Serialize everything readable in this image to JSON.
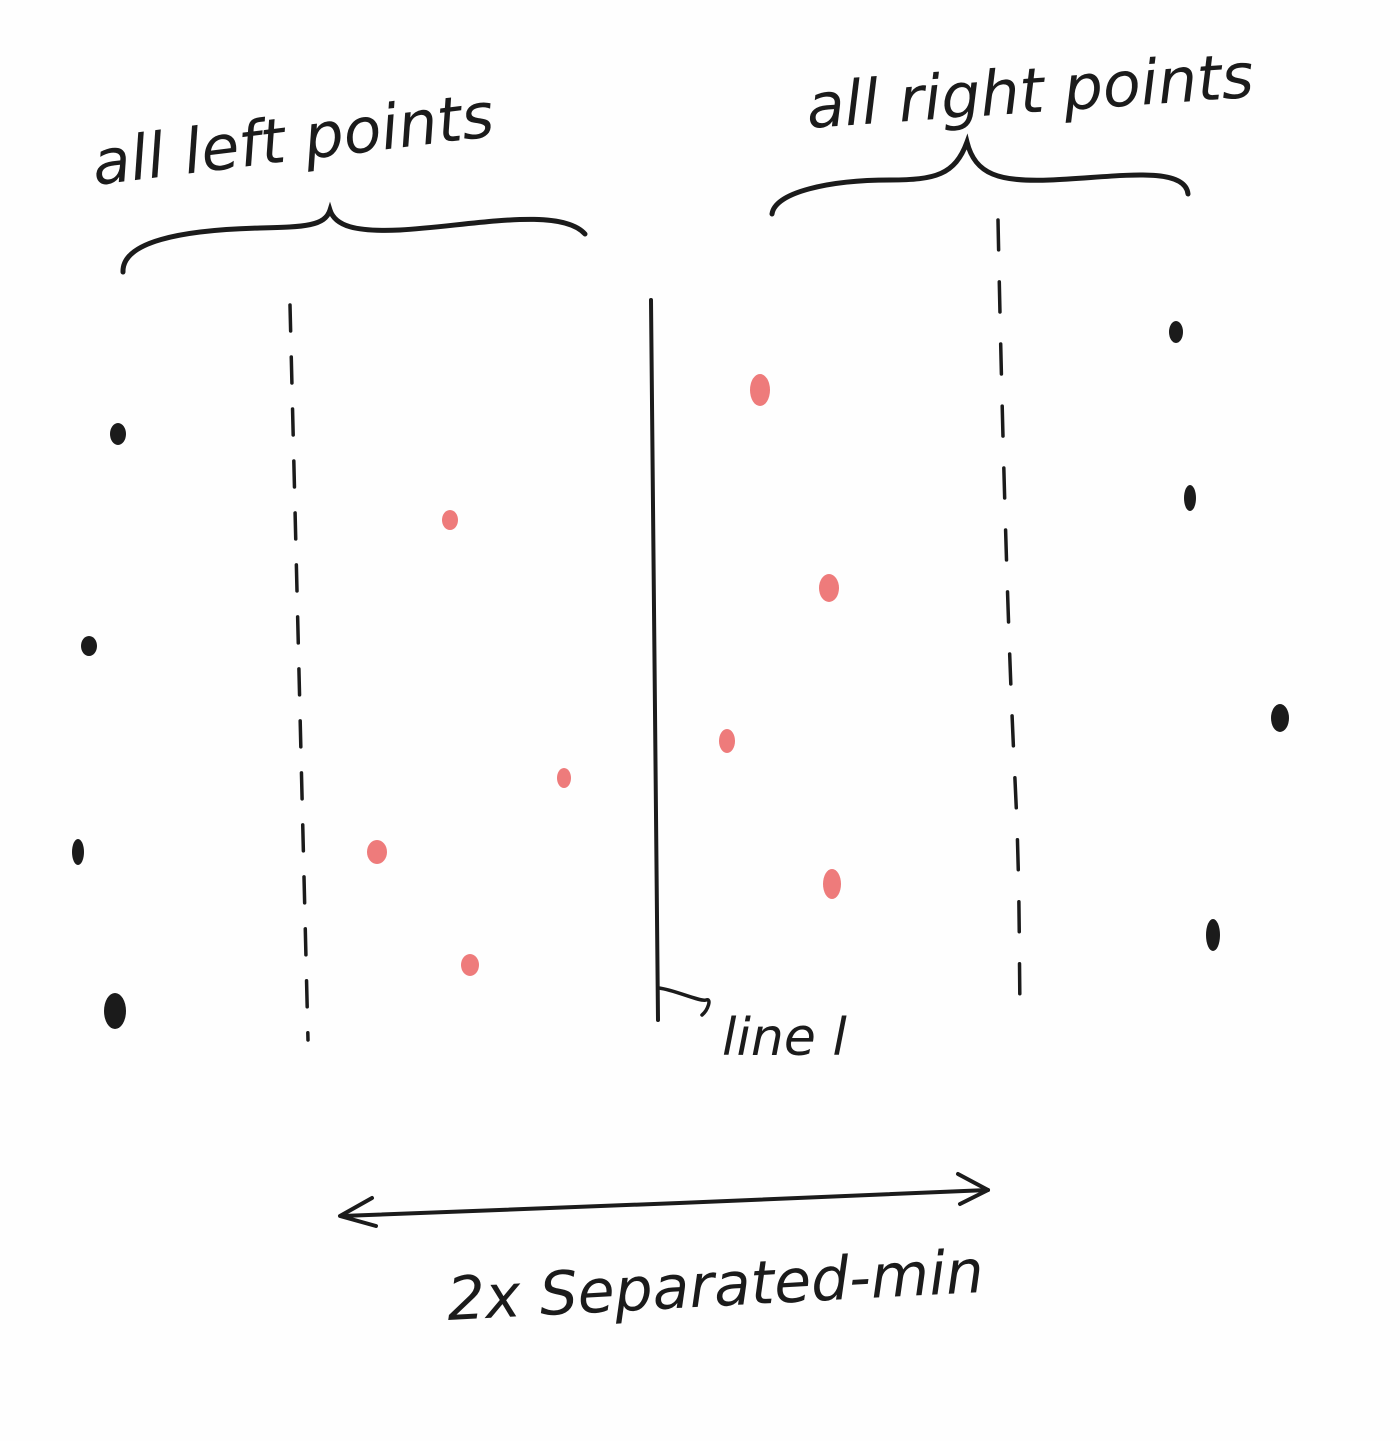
{
  "labels": {
    "left_group": "all left points",
    "right_group": "all right points",
    "line": "line l",
    "width": "2x Separated-min"
  },
  "colors": {
    "ink": "#1b1b1b",
    "strip_point": "#ee7b7b",
    "outer_point": "#1b1b1b",
    "background": "#fefefe"
  }
}
